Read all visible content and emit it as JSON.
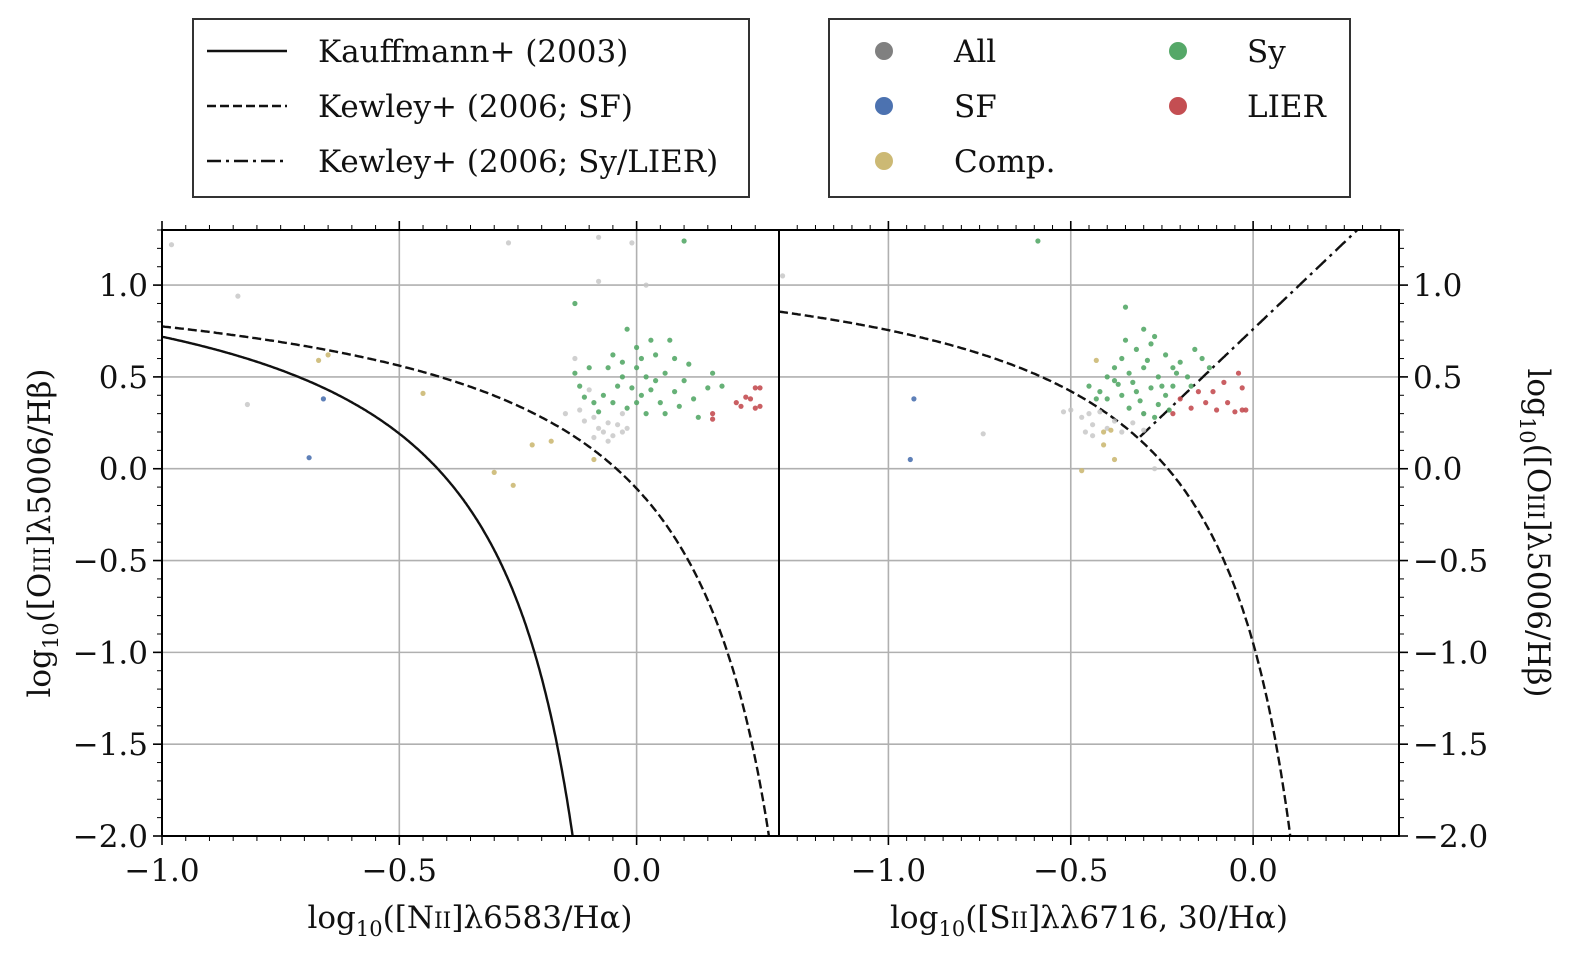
{
  "chart_data": [
    {
      "type": "scatter",
      "panel": "left",
      "xlabel_parts": {
        "prefix": "log",
        "sub": "10",
        "body": "([N",
        "ion": "II",
        "rest": "]λ6583/Hα)"
      },
      "ylabel_parts": {
        "prefix": "log",
        "sub": "10",
        "body": "([O",
        "ion": "III",
        "rest": "]λ5006/Hβ)"
      },
      "xlim": [
        -1.0,
        0.3
      ],
      "ylim": [
        -2.0,
        1.3
      ],
      "x_ticks": [
        -1.0,
        -0.5,
        0.0
      ],
      "x_tick_labels": [
        "−1.0",
        "−0.5",
        "0.0"
      ],
      "y_ticks": [
        1.0,
        0.5,
        0.0,
        -0.5,
        -1.0,
        -1.5,
        -2.0
      ],
      "y_tick_labels": [
        "1.0",
        "0.5",
        "0.0",
        "−0.5",
        "−1.0",
        "−1.5",
        "−2.0"
      ],
      "grid": true,
      "lines": [
        {
          "name": "Kauffmann+ (2003)",
          "style": "solid",
          "formula": "0.61/(x-0.05)+1.3",
          "x_max": 0.05
        },
        {
          "name": "Kewley+ (2006; SF)",
          "style": "dashed",
          "formula": "0.61/(x-0.47)+1.19",
          "x_max": 0.47
        }
      ],
      "series": [
        {
          "name": "All",
          "color": "#c4c4c4",
          "points": [
            [
              -0.98,
              1.22
            ],
            [
              -0.84,
              0.94
            ],
            [
              -0.82,
              0.35
            ],
            [
              -0.27,
              1.23
            ],
            [
              -0.08,
              1.26
            ],
            [
              -0.08,
              1.02
            ],
            [
              -0.01,
              1.23
            ],
            [
              0.02,
              1.0
            ],
            [
              -0.13,
              0.6
            ],
            [
              -0.1,
              0.43
            ],
            [
              -0.12,
              0.32
            ],
            [
              -0.09,
              0.28
            ],
            [
              -0.08,
              0.22
            ],
            [
              -0.07,
              0.2
            ],
            [
              -0.06,
              0.25
            ],
            [
              -0.05,
              0.18
            ],
            [
              -0.04,
              0.24
            ],
            [
              -0.03,
              0.2
            ],
            [
              -0.02,
              0.22
            ],
            [
              -0.06,
              0.15
            ],
            [
              -0.09,
              0.17
            ],
            [
              -0.11,
              0.26
            ],
            [
              -0.15,
              0.3
            ],
            [
              -0.03,
              0.3
            ]
          ]
        },
        {
          "name": "SF",
          "color": "#4c72b0",
          "points": [
            [
              -0.69,
              0.06
            ],
            [
              -0.66,
              0.38
            ]
          ]
        },
        {
          "name": "Comp.",
          "color": "#ccb974",
          "points": [
            [
              -0.67,
              0.59
            ],
            [
              -0.65,
              0.62
            ],
            [
              -0.45,
              0.41
            ],
            [
              -0.3,
              -0.02
            ],
            [
              -0.26,
              -0.09
            ],
            [
              -0.22,
              0.13
            ],
            [
              -0.18,
              0.15
            ],
            [
              -0.09,
              0.05
            ]
          ]
        },
        {
          "name": "Sy",
          "color": "#55a868",
          "points": [
            [
              -0.13,
              0.9
            ],
            [
              -0.13,
              0.52
            ],
            [
              0.1,
              1.24
            ],
            [
              -0.02,
              0.76
            ],
            [
              -0.1,
              0.55
            ],
            [
              -0.06,
              0.55
            ],
            [
              -0.03,
              0.58
            ],
            [
              0.0,
              0.55
            ],
            [
              0.02,
              0.5
            ],
            [
              0.04,
              0.48
            ],
            [
              0.06,
              0.52
            ],
            [
              -0.04,
              0.45
            ],
            [
              -0.01,
              0.44
            ],
            [
              0.01,
              0.4
            ],
            [
              0.03,
              0.43
            ],
            [
              -0.07,
              0.4
            ],
            [
              -0.05,
              0.36
            ],
            [
              0.0,
              0.36
            ],
            [
              0.05,
              0.36
            ],
            [
              -0.09,
              0.36
            ],
            [
              0.08,
              0.42
            ],
            [
              0.1,
              0.48
            ],
            [
              0.12,
              0.38
            ],
            [
              0.15,
              0.44
            ],
            [
              -0.11,
              0.39
            ],
            [
              -0.08,
              0.31
            ],
            [
              -0.02,
              0.33
            ],
            [
              0.02,
              0.3
            ],
            [
              0.06,
              0.3
            ],
            [
              -0.05,
              0.62
            ],
            [
              0.0,
              0.66
            ],
            [
              0.04,
              0.62
            ],
            [
              0.08,
              0.6
            ],
            [
              0.11,
              0.57
            ],
            [
              0.16,
              0.52
            ],
            [
              0.18,
              0.45
            ],
            [
              -0.12,
              0.45
            ],
            [
              0.03,
              0.7
            ],
            [
              0.07,
              0.7
            ],
            [
              -0.03,
              0.5
            ],
            [
              0.01,
              0.6
            ],
            [
              0.09,
              0.34
            ],
            [
              0.13,
              0.28
            ]
          ]
        },
        {
          "name": "LIER",
          "color": "#c44e52",
          "points": [
            [
              0.16,
              0.3
            ],
            [
              0.16,
              0.27
            ],
            [
              0.21,
              0.36
            ],
            [
              0.22,
              0.34
            ],
            [
              0.23,
              0.39
            ],
            [
              0.24,
              0.38
            ],
            [
              0.25,
              0.44
            ],
            [
              0.26,
              0.44
            ],
            [
              0.25,
              0.33
            ],
            [
              0.26,
              0.34
            ]
          ]
        }
      ]
    },
    {
      "type": "scatter",
      "panel": "right",
      "xlabel_parts": {
        "prefix": "log",
        "sub": "10",
        "body": "([S",
        "ion": "II",
        "rest": "]λλ6716, 30/Hα)"
      },
      "ylabel_parts": {
        "prefix": "log",
        "sub": "10",
        "body": "([O",
        "ion": "III",
        "rest": "]λ5006/Hβ)"
      },
      "xlim": [
        -1.3,
        0.4
      ],
      "ylim": [
        -2.0,
        1.3
      ],
      "x_ticks": [
        -1.0,
        -0.5,
        0.0
      ],
      "x_tick_labels": [
        "−1.0",
        "−0.5",
        "0.0"
      ],
      "y_ticks": [
        1.0,
        0.5,
        0.0,
        -0.5,
        -1.0,
        -1.5,
        -2.0
      ],
      "y_tick_labels": [
        "1.0",
        "0.5",
        "0.0",
        "−0.5",
        "−1.0",
        "−1.5",
        "−2.0"
      ],
      "grid": true,
      "lines": [
        {
          "name": "Kewley+ (2006; SF)",
          "style": "dashed",
          "formula": "0.72/(x-0.32)+1.30",
          "x_max": 0.32
        },
        {
          "name": "Kewley+ (2006; Sy/LIER)",
          "style": "dashdot",
          "formula": "1.89*x+0.76"
        }
      ],
      "series": [
        {
          "name": "All",
          "color": "#c4c4c4",
          "points": [
            [
              -1.29,
              1.05
            ],
            [
              -0.74,
              0.19
            ],
            [
              -0.52,
              0.31
            ],
            [
              -0.5,
              0.32
            ],
            [
              -0.47,
              0.28
            ],
            [
              -0.45,
              0.3
            ],
            [
              -0.44,
              0.24
            ],
            [
              -0.42,
              0.31
            ],
            [
              -0.46,
              0.2
            ],
            [
              -0.44,
              0.18
            ],
            [
              -0.4,
              0.22
            ],
            [
              -0.38,
              0.26
            ],
            [
              -0.36,
              0.2
            ],
            [
              -0.33,
              0.25
            ],
            [
              -0.3,
              0.21
            ],
            [
              -0.27,
              0.0
            ],
            [
              -0.3,
              0.3
            ]
          ]
        },
        {
          "name": "SF",
          "color": "#4c72b0",
          "points": [
            [
              -0.94,
              0.05
            ],
            [
              -0.93,
              0.38
            ]
          ]
        },
        {
          "name": "Comp.",
          "color": "#ccb974",
          "points": [
            [
              -0.47,
              -0.01
            ],
            [
              -0.43,
              0.59
            ],
            [
              -0.41,
              0.2
            ],
            [
              -0.38,
              0.05
            ],
            [
              -0.41,
              0.13
            ],
            [
              -0.39,
              0.21
            ]
          ]
        },
        {
          "name": "Sy",
          "color": "#55a868",
          "points": [
            [
              -0.59,
              1.24
            ],
            [
              -0.42,
              0.42
            ],
            [
              -0.38,
              0.48
            ],
            [
              -0.34,
              0.52
            ],
            [
              -0.3,
              0.55
            ],
            [
              -0.26,
              0.5
            ],
            [
              -0.22,
              0.55
            ],
            [
              -0.36,
              0.6
            ],
            [
              -0.32,
              0.65
            ],
            [
              -0.28,
              0.68
            ],
            [
              -0.24,
              0.62
            ],
            [
              -0.2,
              0.58
            ],
            [
              -0.4,
              0.38
            ],
            [
              -0.36,
              0.4
            ],
            [
              -0.32,
              0.42
            ],
            [
              -0.28,
              0.44
            ],
            [
              -0.24,
              0.4
            ],
            [
              -0.34,
              0.33
            ],
            [
              -0.3,
              0.3
            ],
            [
              -0.26,
              0.35
            ],
            [
              -0.22,
              0.45
            ],
            [
              -0.18,
              0.5
            ],
            [
              -0.14,
              0.6
            ],
            [
              -0.3,
              0.76
            ],
            [
              -0.27,
              0.72
            ],
            [
              -0.35,
              0.88
            ],
            [
              -0.45,
              0.45
            ],
            [
              -0.43,
              0.38
            ],
            [
              -0.38,
              0.55
            ],
            [
              -0.33,
              0.47
            ],
            [
              -0.29,
              0.59
            ],
            [
              -0.25,
              0.45
            ],
            [
              -0.21,
              0.52
            ],
            [
              -0.17,
              0.45
            ],
            [
              -0.31,
              0.37
            ],
            [
              -0.37,
              0.46
            ],
            [
              -0.27,
              0.28
            ],
            [
              -0.23,
              0.32
            ],
            [
              -0.4,
              0.5
            ],
            [
              -0.35,
              0.7
            ],
            [
              -0.16,
              0.65
            ],
            [
              -0.12,
              0.55
            ]
          ]
        },
        {
          "name": "LIER",
          "color": "#c44e52",
          "points": [
            [
              -0.22,
              0.3
            ],
            [
              -0.2,
              0.38
            ],
            [
              -0.17,
              0.33
            ],
            [
              -0.15,
              0.42
            ],
            [
              -0.13,
              0.36
            ],
            [
              -0.11,
              0.42
            ],
            [
              -0.1,
              0.32
            ],
            [
              -0.08,
              0.47
            ],
            [
              -0.07,
              0.36
            ],
            [
              -0.05,
              0.31
            ],
            [
              -0.04,
              0.52
            ],
            [
              -0.03,
              0.32
            ],
            [
              -0.02,
              0.32
            ],
            [
              -0.03,
              0.44
            ]
          ]
        }
      ]
    }
  ],
  "legend_lines": [
    {
      "label": "Kauffmann+ (2003)",
      "style": "solid"
    },
    {
      "label": "Kewley+ (2006; SF)",
      "style": "dashed"
    },
    {
      "label": "Kewley+ (2006; Sy/LIER)",
      "style": "dashdot"
    }
  ],
  "legend_markers": [
    {
      "label": "All",
      "color": "#808080"
    },
    {
      "label": "SF",
      "color": "#4c72b0"
    },
    {
      "label": "Comp.",
      "color": "#ccb974"
    },
    {
      "label": "Sy",
      "color": "#55a868"
    },
    {
      "label": "LIER",
      "color": "#c44e52"
    }
  ]
}
